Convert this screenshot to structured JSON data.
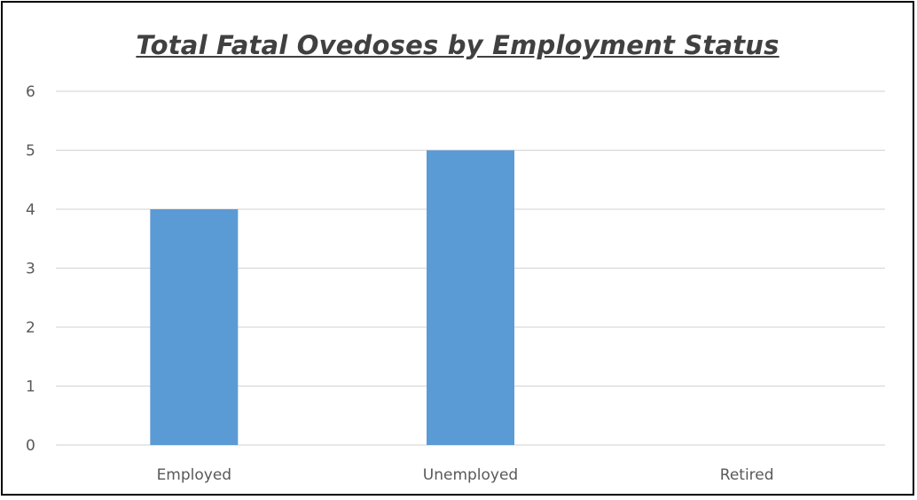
{
  "chart_data": {
    "type": "bar",
    "title": "Total Fatal Ovedoses by Employment Status",
    "xlabel": "",
    "ylabel": "",
    "categories": [
      "Employed",
      "Unemployed",
      "Retired"
    ],
    "values": [
      4,
      5,
      0
    ],
    "ylim": [
      0,
      6
    ],
    "yticks": [
      "0",
      "1",
      "2",
      "3",
      "4",
      "5",
      "6"
    ],
    "grid": true,
    "legend": "none",
    "bar_color": "#5b9bd5",
    "grid_color": "#d9d9d9"
  }
}
